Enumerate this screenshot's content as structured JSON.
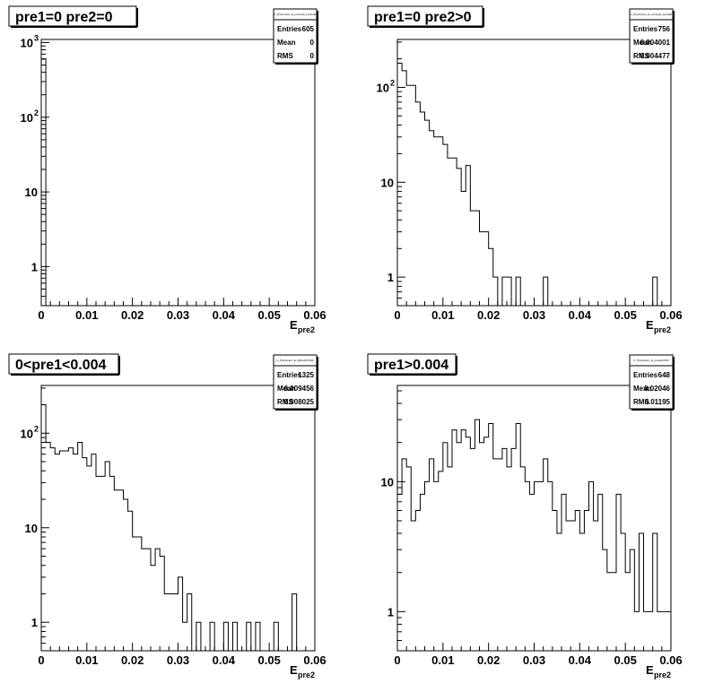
{
  "chart_data": [
    {
      "type": "histogram",
      "title": "pre1=0 pre2=0",
      "stats_title": "h_Preshower_E_pre1eq0_pre2eq0",
      "stats": [
        {
          "label": "Entries",
          "value": "605"
        },
        {
          "label": "Mean",
          "value": "0"
        },
        {
          "label": "RMS",
          "value": "0"
        }
      ],
      "xlabel": "E",
      "xlabel_sub": "pre2",
      "xlim": [
        0,
        0.06
      ],
      "ylim": [
        0.3,
        1100
      ],
      "log_y": true,
      "x_ticks": [
        "0",
        "0.01",
        "0.02",
        "0.03",
        "0.04",
        "0.05",
        "0.06"
      ],
      "y_ticks": [
        {
          "v": 1,
          "base": "1"
        },
        {
          "v": 10,
          "base": "10"
        },
        {
          "v": 100,
          "base": "10",
          "exp": "2"
        },
        {
          "v": 1000,
          "base": "10",
          "exp": "3"
        }
      ],
      "bin_width": 0.001,
      "values": [
        605
      ]
    },
    {
      "type": "histogram",
      "title": "pre1=0 pre2>0",
      "stats_title": "h_Preshower_E_pre1eq0_pre2gt0",
      "stats": [
        {
          "label": "Entries",
          "value": "756"
        },
        {
          "label": "Mean",
          "value": "0.004001"
        },
        {
          "label": "RMS",
          "value": "0.004477"
        }
      ],
      "xlabel": "E",
      "xlabel_sub": "pre2",
      "xlim": [
        0,
        0.06
      ],
      "ylim": [
        0.5,
        320
      ],
      "log_y": true,
      "x_ticks": [
        "0",
        "0.01",
        "0.02",
        "0.03",
        "0.04",
        "0.05",
        "0.06"
      ],
      "y_ticks": [
        {
          "v": 1,
          "base": "1"
        },
        {
          "v": 10,
          "base": "10"
        },
        {
          "v": 100,
          "base": "10",
          "exp": "2"
        }
      ],
      "bin_width": 0.001,
      "values": [
        180,
        150,
        105,
        105,
        70,
        55,
        45,
        35,
        30,
        30,
        25,
        18,
        18,
        14,
        8,
        15,
        5,
        5,
        3,
        3,
        2,
        1,
        0,
        1,
        1,
        0,
        1,
        0,
        0,
        0,
        0,
        0,
        1,
        0,
        0,
        0,
        0,
        0,
        0,
        0,
        0,
        0,
        0,
        0,
        0,
        0,
        0,
        0,
        0,
        0,
        0,
        0,
        0,
        0,
        0,
        0,
        1,
        0,
        0,
        0
      ]
    },
    {
      "type": "histogram",
      "title": "0<pre1<0.004",
      "stats_title": "h_Preshower_E_0ltpre1lt0.004",
      "stats": [
        {
          "label": "Entries",
          "value": "1325"
        },
        {
          "label": "Mean",
          "value": "0.009456"
        },
        {
          "label": "RMS",
          "value": "0.008025"
        }
      ],
      "xlabel": "E",
      "xlabel_sub": "pre2",
      "xlim": [
        0,
        0.06
      ],
      "ylim": [
        0.5,
        320
      ],
      "log_y": true,
      "x_ticks": [
        "0",
        "0.01",
        "0.02",
        "0.03",
        "0.04",
        "0.05",
        "0.06"
      ],
      "y_ticks": [
        {
          "v": 1,
          "base": "1"
        },
        {
          "v": 10,
          "base": "10"
        },
        {
          "v": 100,
          "base": "10",
          "exp": "2"
        }
      ],
      "bin_width": 0.001,
      "values": [
        200,
        80,
        70,
        60,
        65,
        65,
        70,
        60,
        80,
        55,
        45,
        60,
        35,
        35,
        50,
        35,
        25,
        25,
        20,
        15,
        8,
        8,
        6,
        6,
        4,
        6,
        5,
        2,
        2,
        2,
        3,
        1,
        2,
        0,
        1,
        0,
        0.5,
        1,
        0,
        0,
        1,
        0,
        1,
        0,
        0,
        1,
        0,
        1,
        0,
        0,
        0,
        1,
        0,
        0,
        0,
        2,
        0,
        0,
        0,
        0
      ]
    },
    {
      "type": "histogram",
      "title": "pre1>0.004",
      "stats_title": "h_Preshower_E_pre1gt0.004",
      "stats": [
        {
          "label": "Entries",
          "value": "648"
        },
        {
          "label": "Mean",
          "value": "0.02046"
        },
        {
          "label": "RMS",
          "value": "0.01195"
        }
      ],
      "xlabel": "E",
      "xlabel_sub": "pre2",
      "xlim": [
        0,
        0.06
      ],
      "ylim": [
        0.5,
        55
      ],
      "log_y": true,
      "x_ticks": [
        "0",
        "0.01",
        "0.02",
        "0.03",
        "0.04",
        "0.05",
        "0.06"
      ],
      "y_ticks": [
        {
          "v": 1,
          "base": "1"
        },
        {
          "v": 10,
          "base": "10"
        }
      ],
      "bin_width": 0.001,
      "values": [
        8,
        15,
        13,
        5,
        6,
        8,
        10,
        15,
        10,
        12,
        20,
        13,
        25,
        20,
        25,
        22,
        18,
        30,
        20,
        22,
        28,
        15,
        15,
        18,
        13,
        18,
        28,
        13,
        10,
        8,
        10,
        10,
        15,
        10,
        6,
        4,
        8,
        5,
        5,
        6,
        4,
        6,
        10,
        5,
        8,
        3,
        2,
        2,
        8,
        4,
        2,
        3,
        1,
        4,
        1,
        1,
        4,
        1,
        1,
        1
      ]
    }
  ]
}
